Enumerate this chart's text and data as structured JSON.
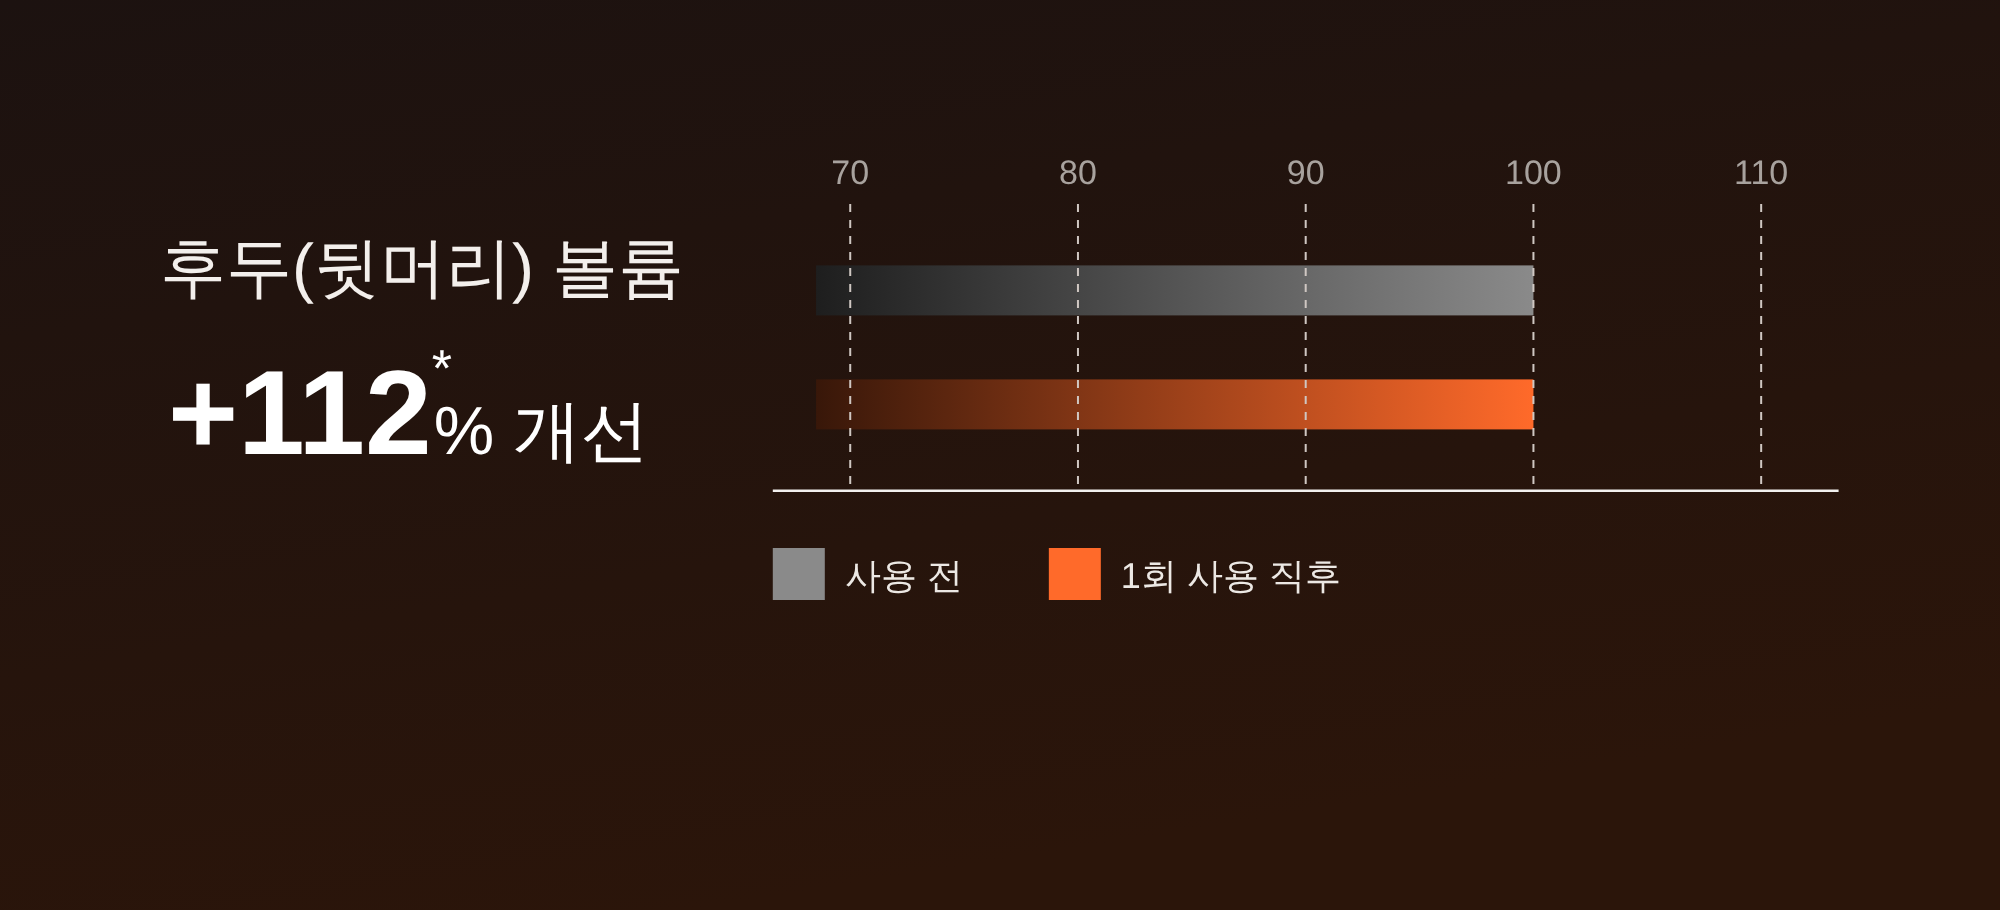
{
  "chart_data": {
    "type": "bar",
    "title": "후두(뒷머리) 볼륨",
    "subtitle": "**+112**$^{*}$% 개선",
    "orientation": "horizontal",
    "categories": [
      null
    ],
    "series": [
      {
        "name": "사용 전",
        "color": "#8a8a8a",
        "values": [
          31.5
        ],
        "base": [
          68.5
        ]
      },
      {
        "name": "1회 사용 직후",
        "color": "#ff6a2a",
        "values": [
          31.5
        ],
        "base": [
          68.5
        ]
      }
    ],
    "xlim": [
      66.6,
      113.4
    ],
    "xticks": [
      70,
      80,
      90,
      100,
      110
    ],
    "grid": "x",
    "legend": "bottom",
    "tick_labels": "x"
  }
}
